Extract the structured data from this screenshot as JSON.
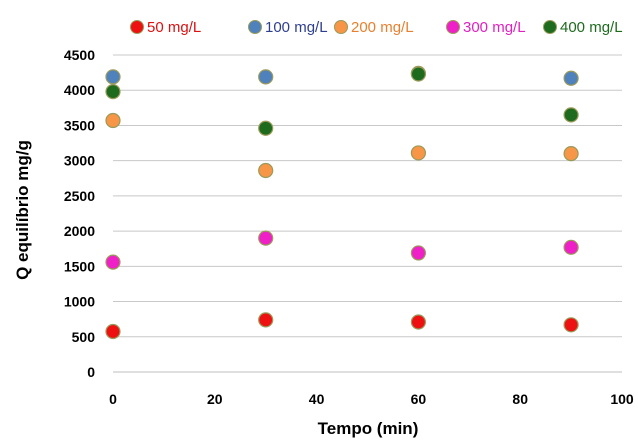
{
  "chart_data": {
    "type": "scatter",
    "title": "",
    "xlabel": "Tempo (min)",
    "ylabel": "Q equilíbrio mg/g",
    "xlim": [
      0,
      100
    ],
    "ylim": [
      0,
      4500
    ],
    "xticks": [
      0,
      20,
      40,
      60,
      80,
      100
    ],
    "yticks": [
      0,
      500,
      1000,
      1500,
      2000,
      2500,
      3000,
      3500,
      4000,
      4500
    ],
    "grid": "horizontal",
    "legend_position": "top",
    "series": [
      {
        "name": "50 mg/L",
        "color": "#ee1111",
        "label_color": "#dd1111",
        "points": [
          [
            0,
            575
          ],
          [
            30,
            740
          ],
          [
            60,
            710
          ],
          [
            90,
            670
          ]
        ]
      },
      {
        "name": "100 mg/L",
        "color": "#4f81bd",
        "label_color": "#2f3f8f",
        "points": [
          [
            0,
            4190
          ],
          [
            30,
            4190
          ],
          [
            60,
            4240
          ],
          [
            90,
            4170
          ]
        ]
      },
      {
        "name": "200 mg/L",
        "color": "#f79646",
        "label_color": "#e8802f",
        "points": [
          [
            0,
            3570
          ],
          [
            30,
            2860
          ],
          [
            60,
            3110
          ],
          [
            90,
            3100
          ]
        ]
      },
      {
        "name": "300 mg/L",
        "color": "#f020c8",
        "label_color": "#e020c0",
        "points": [
          [
            0,
            1560
          ],
          [
            30,
            1900
          ],
          [
            60,
            1690
          ],
          [
            90,
            1770
          ]
        ]
      },
      {
        "name": "400 mg/L",
        "color": "#1e6b1e",
        "label_color": "#1e6b1e",
        "points": [
          [
            0,
            3980
          ],
          [
            30,
            3460
          ],
          [
            60,
            4230
          ],
          [
            90,
            3650
          ]
        ]
      }
    ]
  }
}
